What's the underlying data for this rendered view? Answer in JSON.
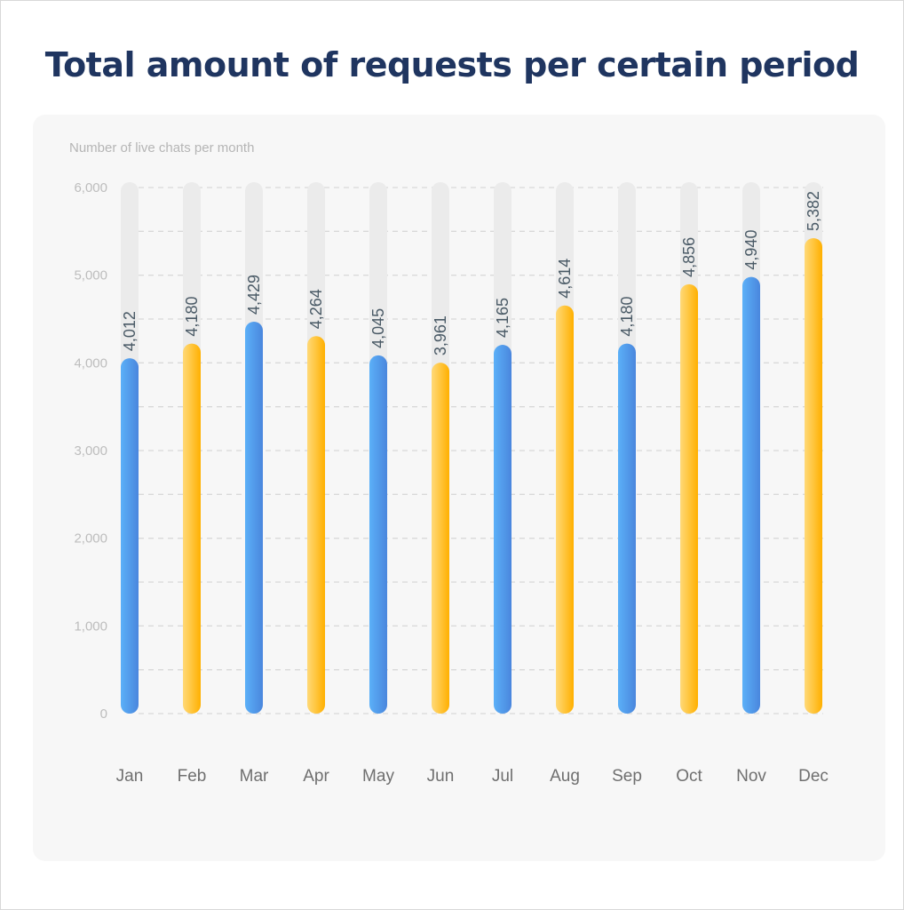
{
  "title": "Total amount of requests per certain period",
  "chart_data": {
    "type": "bar",
    "title": "Total amount of requests per certain period",
    "subtitle": "Number of live chats per month",
    "categories": [
      "Jan",
      "Feb",
      "Mar",
      "Apr",
      "May",
      "Jun",
      "Jul",
      "Aug",
      "Sep",
      "Oct",
      "Nov",
      "Dec"
    ],
    "values": [
      4012,
      4180,
      4429,
      4264,
      4045,
      3961,
      4165,
      4614,
      4180,
      4856,
      4940,
      5382
    ],
    "value_labels": [
      "4,012",
      "4,180",
      "4,429",
      "4,264",
      "4,045",
      "3,961",
      "4,165",
      "4,614",
      "4,180",
      "4,856",
      "4,940",
      "5,382"
    ],
    "ylim": [
      0,
      6000
    ],
    "yticks": [
      0,
      1000,
      2000,
      3000,
      4000,
      5000,
      6000
    ],
    "ytick_labels": [
      "0",
      "1,000",
      "2,000",
      "3,000",
      "4,000",
      "5,000",
      "6,000"
    ],
    "grid": true,
    "bar_colors": [
      "blue",
      "yellow",
      "blue",
      "yellow",
      "blue",
      "yellow",
      "blue",
      "yellow",
      "blue",
      "yellow",
      "blue",
      "yellow"
    ],
    "colors": {
      "blue_start": "#5bb0f8",
      "blue_end": "#4a86dd",
      "yellow_start": "#ffd978",
      "yellow_end": "#ffb000",
      "track": "#ebebeb",
      "title": "#1f3560"
    }
  }
}
